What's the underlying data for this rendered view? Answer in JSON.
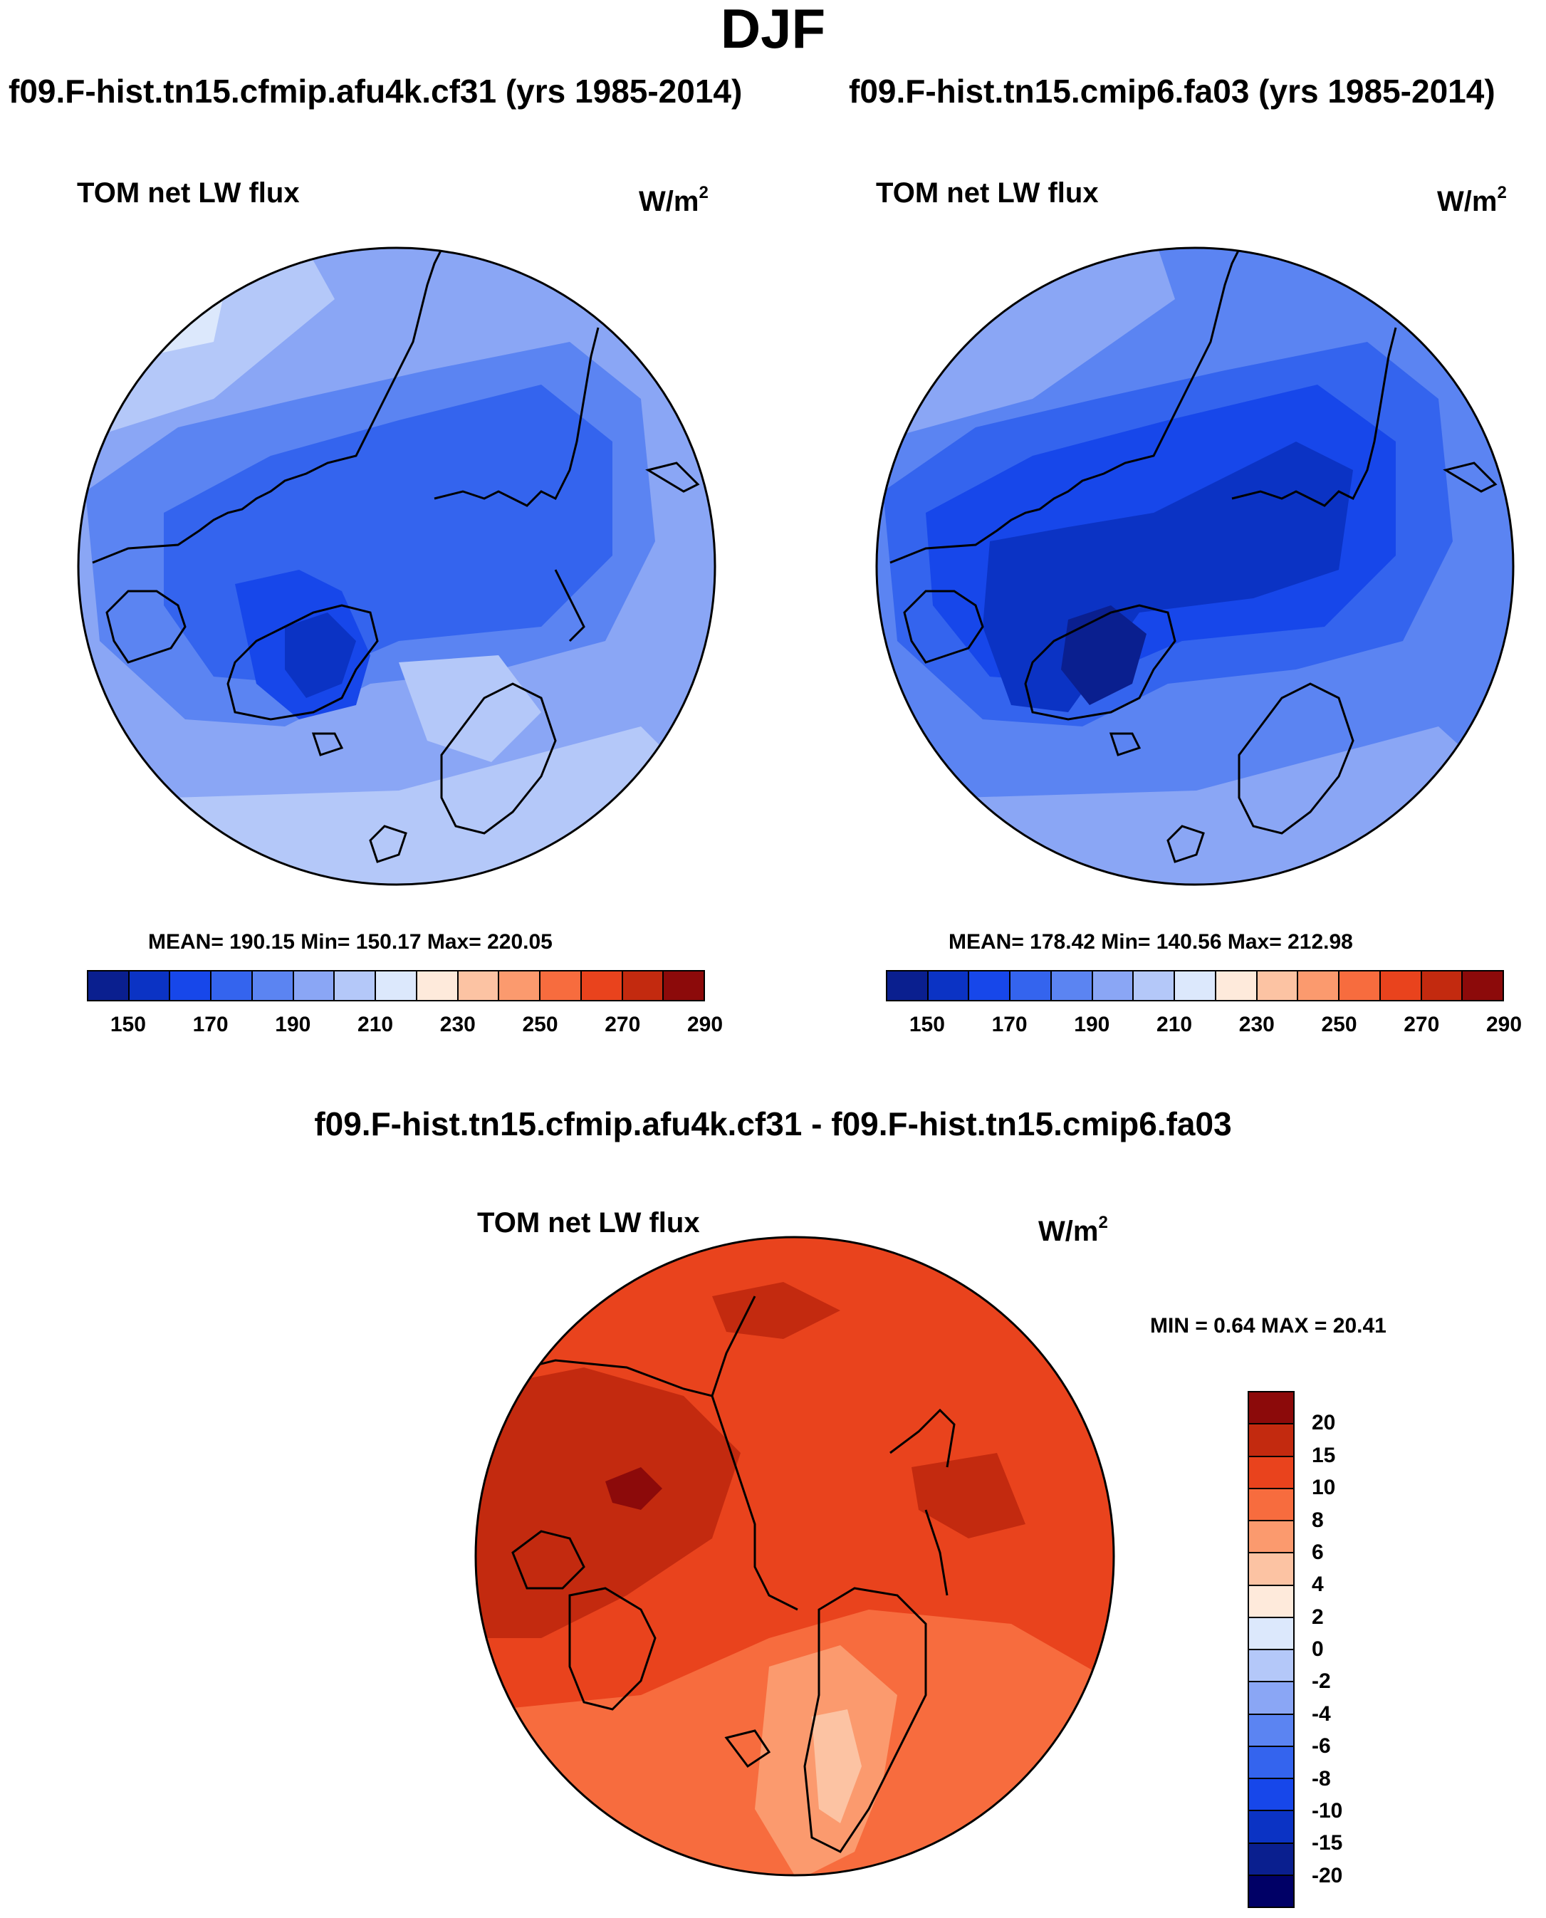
{
  "figure": {
    "title": "DJF",
    "diff_title": "f09.F-hist.tn15.cfmip.afu4k.cf31 - f09.F-hist.tn15.cmip6.fa03"
  },
  "panels": [
    {
      "case_title": "f09.F-hist.tn15.cfmip.afu4k.cf31 (yrs 1985-2014)",
      "variable": "TOM net LW flux",
      "units": "W/m",
      "units_sup": "2",
      "stats": "MEAN= 190.15  Min= 150.17  Max= 220.05"
    },
    {
      "case_title": "f09.F-hist.tn15.cmip6.fa03 (yrs 1985-2014)",
      "variable": "TOM net LW flux",
      "units": "W/m",
      "units_sup": "2",
      "stats": "MEAN= 178.42  Min= 140.56  Max= 212.98"
    },
    {
      "variable": "TOM net LW flux",
      "units": "W/m",
      "units_sup": "2",
      "stats": "MIN =   0.64 MAX =  20.41"
    }
  ],
  "abs_colorbar": {
    "labels": [
      "150",
      "170",
      "190",
      "210",
      "230",
      "250",
      "270",
      "290"
    ],
    "colors": [
      "#0a1f8f",
      "#0b33c4",
      "#1747ea",
      "#3464ee",
      "#5b84f2",
      "#8aa6f5",
      "#b4c8f9",
      "#dce8fc",
      "#feeadb",
      "#fcc3a3",
      "#fb9a6e",
      "#f76c3e",
      "#e9431d",
      "#c32a0f",
      "#8c0a0a"
    ]
  },
  "diff_colorbar": {
    "labels": [
      "20",
      "15",
      "10",
      "8",
      "6",
      "4",
      "2",
      "0",
      "-2",
      "-4",
      "-6",
      "-8",
      "-10",
      "-15",
      "-20"
    ],
    "colors": [
      "#8c0a0a",
      "#c32a0f",
      "#e9431d",
      "#f76c3e",
      "#fb9a6e",
      "#fcc3a3",
      "#feeadb",
      "#dce8fc",
      "#b4c8f9",
      "#8aa6f5",
      "#5b84f2",
      "#3464ee",
      "#1747ea",
      "#0b33c4",
      "#0a1f8f",
      "#000066"
    ]
  },
  "map_colors": {
    "p1": [
      "#8aa6f5",
      "#5b84f2",
      "#3464ee",
      "#1747ea",
      "#0b33c4",
      "#b4c8f9",
      "#dce8fc"
    ],
    "p2": [
      "#5b84f2",
      "#3464ee",
      "#1747ea",
      "#0b33c4",
      "#0a1f8f",
      "#8aa6f5"
    ],
    "p3": [
      "#e9431d",
      "#c32a0f",
      "#f76c3e",
      "#fb9a6e",
      "#fcc3a3",
      "#8c0a0a"
    ]
  }
}
